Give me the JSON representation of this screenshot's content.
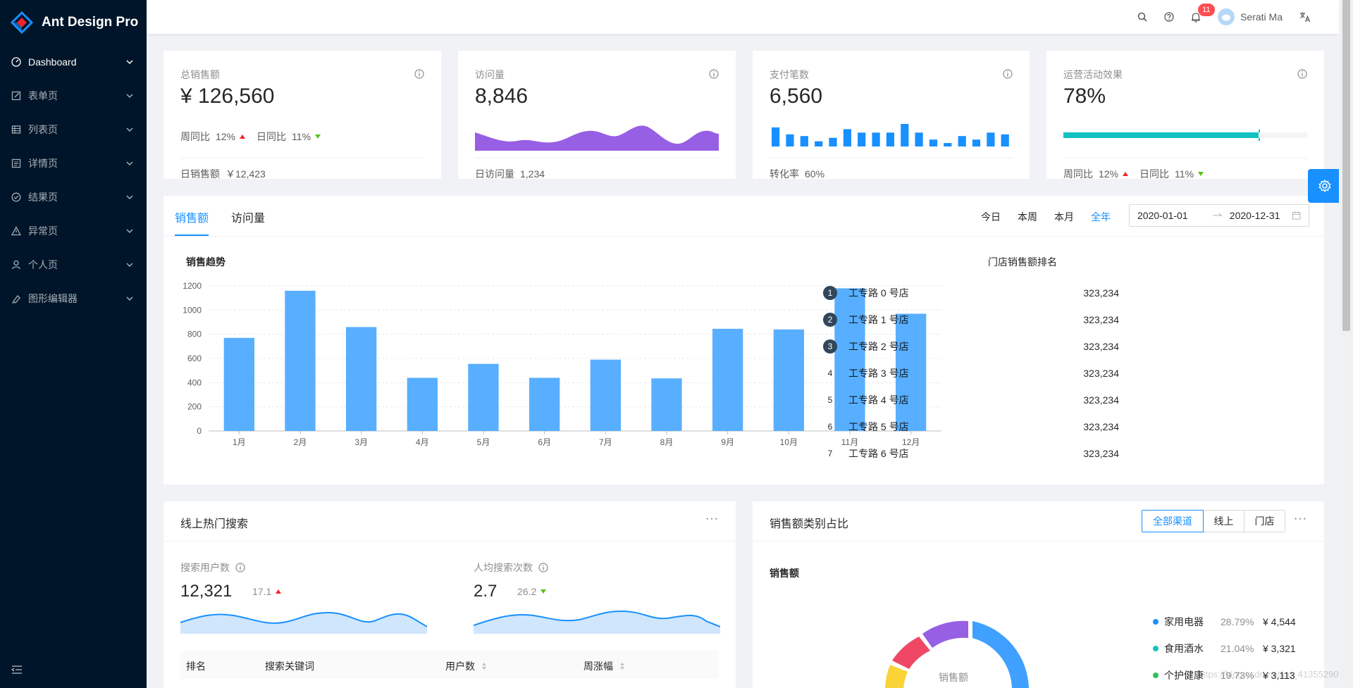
{
  "app": {
    "title": "Ant Design Pro"
  },
  "sidebar": {
    "items": [
      {
        "label": "Dashboard",
        "icon": "dashboard-icon"
      },
      {
        "label": "表单页",
        "icon": "form-icon"
      },
      {
        "label": "列表页",
        "icon": "table-icon"
      },
      {
        "label": "详情页",
        "icon": "profile-icon"
      },
      {
        "label": "结果页",
        "icon": "check-circle-icon"
      },
      {
        "label": "异常页",
        "icon": "warning-icon"
      },
      {
        "label": "个人页",
        "icon": "user-icon"
      },
      {
        "label": "图形编辑器",
        "icon": "highlight-icon"
      }
    ]
  },
  "header": {
    "username": "Serati Ma",
    "notice_count": "11"
  },
  "stats": {
    "sales": {
      "label": "总销售额",
      "value": "¥ 126,560",
      "wow_label": "周同比",
      "wow": "12%",
      "dod_label": "日同比",
      "dod": "11%",
      "foot_label": "日销售额",
      "foot_value": "￥12,423"
    },
    "visits": {
      "label": "访问量",
      "value": "8,846",
      "foot_label": "日访问量",
      "foot_value": "1,234"
    },
    "payments": {
      "label": "支付笔数",
      "value": "6,560",
      "foot_label": "转化率",
      "foot_value": "60%",
      "bars": [
        22,
        14,
        12,
        6,
        10,
        20,
        16,
        16,
        16,
        26,
        16,
        8,
        4,
        12,
        8,
        16,
        14
      ]
    },
    "operations": {
      "label": "运营活动效果",
      "value": "78%",
      "progress": 0.8,
      "target": 0.8,
      "wow_label": "周同比",
      "wow": "12%",
      "dod_label": "日同比",
      "dod": "11%"
    }
  },
  "sales_card": {
    "tabs": [
      "销售额",
      "访问量"
    ],
    "ranges": [
      "今日",
      "本周",
      "本月",
      "全年"
    ],
    "date_start": "2020-01-01",
    "date_end": "2020-12-31",
    "chart_title": "销售趋势",
    "rank_title": "门店销售额排名",
    "rankings": [
      {
        "n": "1",
        "name": "工专路 0 号店",
        "value": "323,234"
      },
      {
        "n": "2",
        "name": "工专路 1 号店",
        "value": "323,234"
      },
      {
        "n": "3",
        "name": "工专路 2 号店",
        "value": "323,234"
      },
      {
        "n": "4",
        "name": "工专路 3 号店",
        "value": "323,234"
      },
      {
        "n": "5",
        "name": "工专路 4 号店",
        "value": "323,234"
      },
      {
        "n": "6",
        "name": "工专路 5 号店",
        "value": "323,234"
      },
      {
        "n": "7",
        "name": "工专路 6 号店",
        "value": "323,234"
      }
    ]
  },
  "chart_data": {
    "type": "bar",
    "title": "销售趋势",
    "categories": [
      "1月",
      "2月",
      "3月",
      "4月",
      "5月",
      "6月",
      "7月",
      "8月",
      "9月",
      "10月",
      "11月",
      "12月"
    ],
    "values": [
      770,
      1160,
      860,
      440,
      555,
      440,
      590,
      435,
      845,
      840,
      1180,
      970
    ],
    "ylim": [
      0,
      1200
    ],
    "yticks": [
      0,
      200,
      400,
      600,
      800,
      1000,
      1200
    ],
    "xlabel": "",
    "ylabel": "",
    "color": "#58afff"
  },
  "search_card": {
    "title": "线上热门搜索",
    "users_label": "搜索用户数",
    "users_value": "12,321",
    "users_change": "17.1",
    "avg_label": "人均搜索次数",
    "avg_value": "2.7",
    "avg_change": "26.2",
    "columns": [
      "排名",
      "搜索关键词",
      "用户数",
      "周涨幅"
    ]
  },
  "category_card": {
    "title": "销售额类别占比",
    "radios": [
      "全部渠道",
      "线上",
      "门店"
    ],
    "sub_title": "销售额",
    "donut_label": "销售额",
    "legend": [
      {
        "name": "家用电器",
        "pct": "28.79%",
        "value": "¥ 4,544",
        "color": "#1890ff"
      },
      {
        "name": "食用酒水",
        "pct": "21.04%",
        "value": "¥ 3,321",
        "color": "#13c2c2"
      },
      {
        "name": "个护健康",
        "pct": "19.73%",
        "value": "¥ 3,113",
        "color": "#2fc25b"
      }
    ]
  },
  "colors": {
    "primary": "#1890ff",
    "sider": "#001529",
    "visits_area": "#975fe4",
    "progress": "#13c2c2"
  }
}
